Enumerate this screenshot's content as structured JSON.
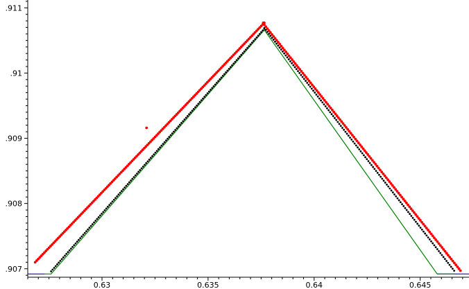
{
  "chart_data": {
    "type": "scatter",
    "title": "",
    "xlabel": "",
    "ylabel": "",
    "xlim": [
      0.6265,
      0.6473
    ],
    "ylim": [
      0.90687,
      0.91112
    ],
    "x_ticks": [
      {
        "value": 0.63,
        "label": "0.63"
      },
      {
        "value": 0.635,
        "label": "0.635"
      },
      {
        "value": 0.64,
        "label": "0.64"
      },
      {
        "value": 0.645,
        "label": "0.645"
      }
    ],
    "y_ticks": [
      {
        "value": 0.907,
        "label": ".907"
      },
      {
        "value": 0.908,
        "label": ".908"
      },
      {
        "value": 0.909,
        "label": ".909"
      },
      {
        "value": 0.91,
        "label": ".91"
      },
      {
        "value": 0.911,
        "label": ".911"
      }
    ],
    "grid": false,
    "colors": {
      "green_line": "#008000",
      "blue_line": "#0000ff",
      "red_points": "#ff0000",
      "black_points": "#000000",
      "axis": "#000000"
    },
    "series": [
      {
        "kind": "line",
        "color_key": "blue_line",
        "points": [
          [
            0.6265,
            0.90692
          ],
          [
            0.6273,
            0.90692
          ]
        ],
        "points2": [
          [
            0.6458,
            0.90692
          ],
          [
            0.6473,
            0.90692
          ]
        ]
      },
      {
        "kind": "line",
        "color_key": "green_line",
        "points": [
          [
            0.6273,
            0.90692
          ],
          [
            0.6276,
            0.90692
          ],
          [
            0.63765,
            0.91066
          ],
          [
            0.6458,
            0.90692
          ],
          [
            0.6466,
            0.90692
          ]
        ]
      },
      {
        "kind": "scatter",
        "color_key": "red_points",
        "segments": [
          {
            "x_start": 0.62685,
            "x_end": 0.63765,
            "y_start": 0.90692,
            "y_end": 0.91072,
            "n": 150,
            "offset_start": 0.00018,
            "offset_end": 5e-05
          },
          {
            "x_start": 0.63765,
            "x_end": 0.6469,
            "y_start": 0.91072,
            "y_end": 0.90697,
            "n": 128,
            "offset_start": 2e-05,
            "offset_end": 0.0
          }
        ],
        "outliers": [
          [
            0.6321,
            0.90916
          ],
          [
            0.6376,
            0.91077
          ]
        ]
      },
      {
        "kind": "scatter",
        "color_key": "black_points",
        "segments": [
          {
            "x_start": 0.6276,
            "x_end": 0.63765,
            "y_start": 0.90692,
            "y_end": 0.91066,
            "n": 140,
            "offset_start": 4e-05,
            "offset_end": 2e-05
          },
          {
            "x_start": 0.63765,
            "x_end": 0.6466,
            "y_start": 0.91066,
            "y_end": 0.90692,
            "n": 125,
            "offset_start": 3e-05,
            "offset_end": 5e-05
          }
        ],
        "outliers": []
      }
    ]
  }
}
